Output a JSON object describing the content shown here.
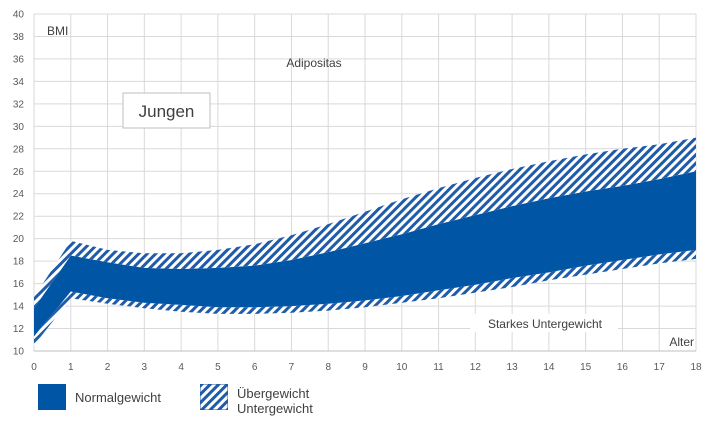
{
  "chart_data": {
    "type": "area",
    "title": "Jungen",
    "ylabel": "BMI",
    "xlabel": "Alter",
    "x": [
      0,
      1,
      2,
      3,
      4,
      5,
      6,
      7,
      8,
      9,
      10,
      11,
      12,
      13,
      14,
      15,
      16,
      17,
      18
    ],
    "xlim": [
      0,
      18
    ],
    "ylim": [
      10,
      40
    ],
    "yticks": [
      10,
      12,
      14,
      16,
      18,
      20,
      22,
      24,
      26,
      28,
      30,
      32,
      34,
      36,
      38,
      40
    ],
    "grid": true,
    "series": [
      {
        "name": "Untergewicht",
        "lower": [
          10.5,
          14.7,
          14.2,
          13.8,
          13.5,
          13.3,
          13.3,
          13.4,
          13.6,
          13.9,
          14.3,
          14.7,
          15.2,
          15.7,
          16.3,
          16.8,
          17.3,
          17.8,
          18.2
        ],
        "upper": [
          11.3,
          15.3,
          14.7,
          14.3,
          14.1,
          13.9,
          13.9,
          14.0,
          14.2,
          14.5,
          14.9,
          15.4,
          15.9,
          16.5,
          17.0,
          17.6,
          18.1,
          18.6,
          19.0
        ]
      },
      {
        "name": "Normalgewicht",
        "lower": [
          11.3,
          15.3,
          14.7,
          14.3,
          14.1,
          13.9,
          13.9,
          14.0,
          14.2,
          14.5,
          14.9,
          15.4,
          15.9,
          16.5,
          17.0,
          17.6,
          18.1,
          18.6,
          19.0
        ],
        "upper": [
          13.8,
          18.5,
          17.9,
          17.4,
          17.3,
          17.4,
          17.6,
          18.1,
          18.8,
          19.6,
          20.4,
          21.3,
          22.1,
          22.9,
          23.6,
          24.2,
          24.7,
          25.3,
          26.0
        ]
      },
      {
        "name": "Übergewicht",
        "lower": [
          13.8,
          18.5,
          17.9,
          17.4,
          17.3,
          17.4,
          17.6,
          18.1,
          18.8,
          19.6,
          20.4,
          21.3,
          22.1,
          22.9,
          23.6,
          24.2,
          24.7,
          25.3,
          26.0
        ],
        "upper": [
          14.8,
          19.8,
          19.0,
          18.7,
          18.7,
          19.0,
          19.5,
          20.3,
          21.3,
          22.4,
          23.5,
          24.5,
          25.4,
          26.2,
          26.9,
          27.5,
          28.0,
          28.4,
          29.0
        ]
      }
    ],
    "annotations": [
      "Adipositas",
      "Starkes Untergewicht"
    ],
    "colors": {
      "normal": "#0055a4",
      "hatch": "#1f5ba8",
      "grid": "#d9d9d9",
      "axis": "#bfbfbf"
    }
  },
  "legend": {
    "normal_label": "Normalgewicht",
    "over_label": "Übergewicht",
    "under_label": "Untergewicht"
  }
}
